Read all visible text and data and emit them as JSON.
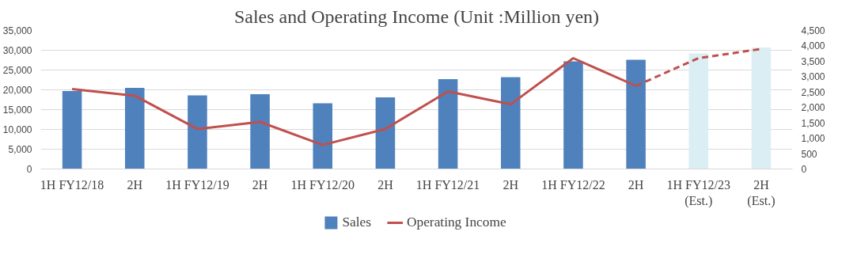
{
  "chart_data": {
    "type": "bar",
    "title": "Sales and Operating Income (Unit :Million yen)",
    "categories": [
      "1H FY12/18",
      "2H",
      "1H FY12/19",
      "2H",
      "1H FY12/20",
      "2H",
      "1H FY12/21",
      "2H",
      "1H FY12/22",
      "2H",
      "1H FY12/23\n(Est.)",
      "2H\n(Est.)"
    ],
    "series": [
      {
        "name": "Sales",
        "color": "#4f81bd",
        "colors": [
          "#4f81bd",
          "#4f81bd",
          "#4f81bd",
          "#4f81bd",
          "#4f81bd",
          "#4f81bd",
          "#4f81bd",
          "#4f81bd",
          "#4f81bd",
          "#4f81bd",
          "#dbeef4",
          "#dbeef4"
        ],
        "values": [
          19700,
          20500,
          18600,
          18900,
          16600,
          18100,
          22700,
          23200,
          27200,
          27600,
          29200,
          30700
        ]
      },
      {
        "name": "Operating Income",
        "type": "line",
        "axis": "y2",
        "color": "#c0504d",
        "line_style": "solid",
        "values": [
          2600,
          2380,
          1300,
          1530,
          780,
          1300,
          2520,
          2100,
          3600,
          2700,
          null,
          null
        ]
      },
      {
        "type": "line",
        "axis": "y2",
        "color": "#c0504d",
        "line_style": "dashed",
        "values": [
          null,
          null,
          null,
          null,
          null,
          null,
          null,
          null,
          null,
          2700,
          3600,
          3900
        ]
      }
    ],
    "ylim": [
      0,
      35000
    ],
    "yticks": [
      {
        "value": 0,
        "label": "0"
      },
      {
        "value": 5000,
        "label": "5,000"
      },
      {
        "value": 10000,
        "label": "10,000"
      },
      {
        "value": 15000,
        "label": "15,000"
      },
      {
        "value": 20000,
        "label": "20,000"
      },
      {
        "value": 25000,
        "label": "25,000"
      },
      {
        "value": 30000,
        "label": "30,000"
      },
      {
        "value": 35000,
        "label": "35,000"
      }
    ],
    "y2lim": [
      0,
      4500
    ],
    "y2ticks": [
      {
        "value": 0,
        "label": "0"
      },
      {
        "value": 500,
        "label": "500"
      },
      {
        "value": 1000,
        "label": "1,000"
      },
      {
        "value": 1500,
        "label": "1,500"
      },
      {
        "value": 2000,
        "label": "2,000"
      },
      {
        "value": 2500,
        "label": "2,500"
      },
      {
        "value": 3000,
        "label": "3,000"
      },
      {
        "value": 3500,
        "label": "3,500"
      },
      {
        "value": 4000,
        "label": "4,000"
      },
      {
        "value": 4500,
        "label": "4,500"
      }
    ],
    "grid": "y",
    "legend": "bottom",
    "marker": "none"
  }
}
